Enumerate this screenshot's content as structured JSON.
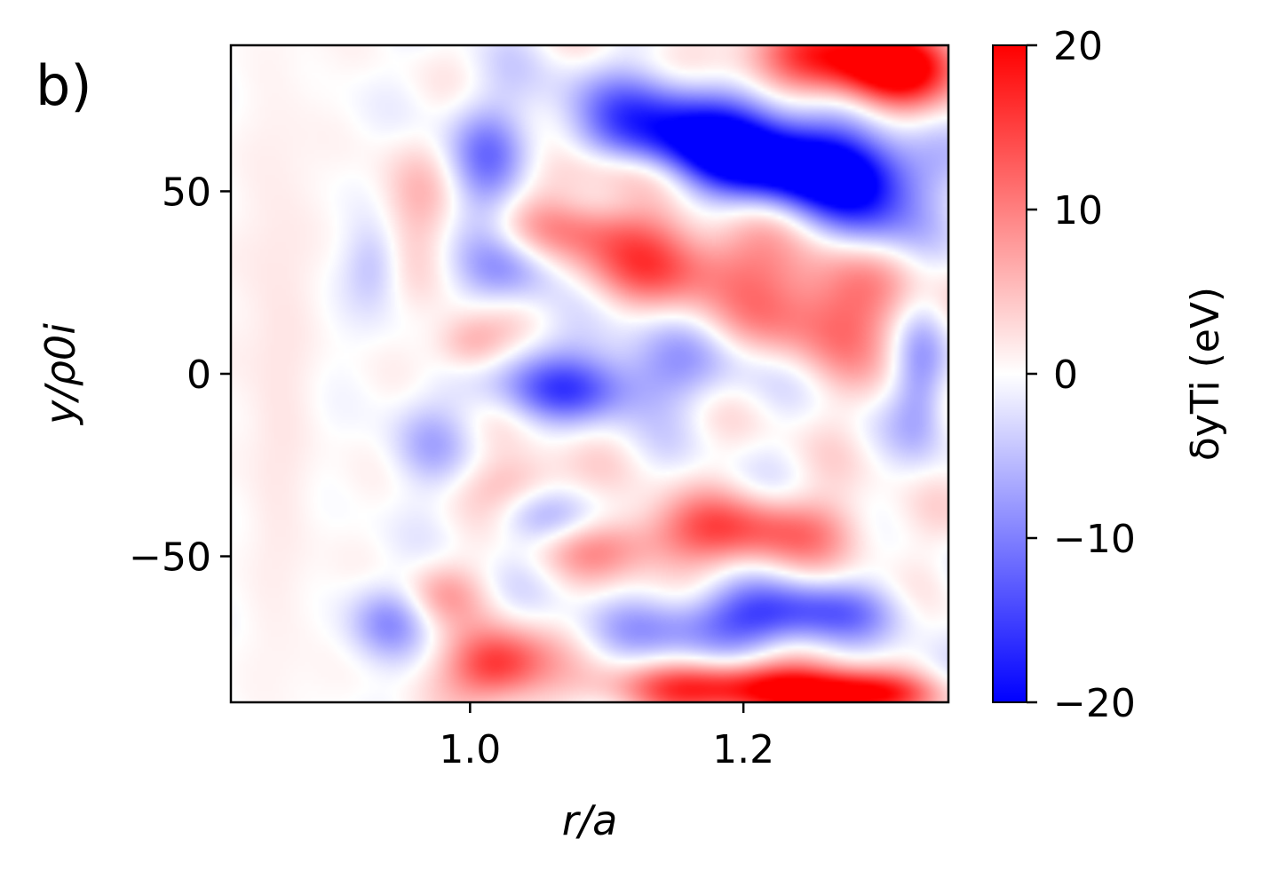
{
  "panel_label": "b)",
  "colors": {
    "cmap_low": "#0000ff",
    "cmap_mid": "#ffffff",
    "cmap_high": "#ff0000",
    "frame": "#000000"
  },
  "chart_data": {
    "type": "heatmap",
    "xlabel": "r/a",
    "ylabel": "y/ρ0i",
    "xlim": [
      0.825,
      1.35
    ],
    "ylim": [
      -90,
      90
    ],
    "xticks": [
      {
        "value": 1.0,
        "label": "1.0"
      },
      {
        "value": 1.2,
        "label": "1.2"
      }
    ],
    "yticks": [
      {
        "value": 50,
        "label": "50"
      },
      {
        "value": 0,
        "label": "0"
      },
      {
        "value": -50,
        "label": "−50"
      }
    ],
    "colorbar": {
      "label": "δyTi (eV)",
      "vmin": -20,
      "vmax": 20,
      "ticks": [
        {
          "value": 20,
          "label": "20"
        },
        {
          "value": 10,
          "label": "10"
        },
        {
          "value": 0,
          "label": "0"
        },
        {
          "value": -10,
          "label": "−10"
        },
        {
          "value": -20,
          "label": "−20"
        }
      ]
    },
    "features": [
      {
        "x": 1.19,
        "y": 62,
        "sx": 0.06,
        "sy": 8,
        "v": -20
      },
      {
        "x": 1.25,
        "y": 55,
        "sx": 0.05,
        "sy": 7,
        "v": -17
      },
      {
        "x": 1.29,
        "y": 45,
        "sx": 0.03,
        "sy": 10,
        "v": -14
      },
      {
        "x": 1.14,
        "y": 72,
        "sx": 0.05,
        "sy": 9,
        "v": -11
      },
      {
        "x": 1.27,
        "y": 86,
        "sx": 0.06,
        "sy": 7,
        "v": 17
      },
      {
        "x": 1.31,
        "y": 82,
        "sx": 0.03,
        "sy": 8,
        "v": 13
      },
      {
        "x": 1.26,
        "y": 18,
        "sx": 0.05,
        "sy": 14,
        "v": 13
      },
      {
        "x": 1.14,
        "y": 30,
        "sx": 0.05,
        "sy": 8,
        "v": 12
      },
      {
        "x": 1.09,
        "y": 40,
        "sx": 0.04,
        "sy": 6,
        "v": 8
      },
      {
        "x": 1.0,
        "y": 8,
        "sx": 0.02,
        "sy": 6,
        "v": 9
      },
      {
        "x": 0.96,
        "y": 45,
        "sx": 0.02,
        "sy": 12,
        "v": 5
      },
      {
        "x": 1.01,
        "y": 58,
        "sx": 0.02,
        "sy": 12,
        "v": -9
      },
      {
        "x": 1.03,
        "y": 28,
        "sx": 0.025,
        "sy": 7,
        "v": -8
      },
      {
        "x": 1.13,
        "y": 2,
        "sx": 0.08,
        "sy": 8,
        "v": -7
      },
      {
        "x": 1.07,
        "y": -5,
        "sx": 0.04,
        "sy": 6,
        "v": -9
      },
      {
        "x": 1.33,
        "y": 0,
        "sx": 0.015,
        "sy": 14,
        "v": -9
      },
      {
        "x": 1.2,
        "y": -43,
        "sx": 0.06,
        "sy": 7,
        "v": 13
      },
      {
        "x": 1.1,
        "y": -48,
        "sx": 0.04,
        "sy": 6,
        "v": 6
      },
      {
        "x": 1.24,
        "y": -65,
        "sx": 0.05,
        "sy": 6,
        "v": -12
      },
      {
        "x": 1.17,
        "y": -70,
        "sx": 0.05,
        "sy": 6,
        "v": -8
      },
      {
        "x": 1.2,
        "y": -86,
        "sx": 0.06,
        "sy": 5,
        "v": 20
      },
      {
        "x": 1.28,
        "y": -88,
        "sx": 0.04,
        "sy": 4,
        "v": 16
      },
      {
        "x": 1.02,
        "y": -80,
        "sx": 0.025,
        "sy": 7,
        "v": 18
      },
      {
        "x": 0.98,
        "y": -60,
        "sx": 0.02,
        "sy": 6,
        "v": 6
      },
      {
        "x": 0.94,
        "y": -68,
        "sx": 0.02,
        "sy": 7,
        "v": -8
      },
      {
        "x": 1.04,
        "y": -30,
        "sx": 0.025,
        "sy": 6,
        "v": 7
      },
      {
        "x": 1.06,
        "y": -40,
        "sx": 0.03,
        "sy": 6,
        "v": -7
      },
      {
        "x": 0.97,
        "y": -20,
        "sx": 0.02,
        "sy": 8,
        "v": -5
      },
      {
        "x": 0.93,
        "y": 30,
        "sx": 0.015,
        "sy": 8,
        "v": -5
      },
      {
        "x": 1.11,
        "y": 55,
        "sx": 0.04,
        "sy": 6,
        "v": 9
      },
      {
        "x": 0.86,
        "y": 0,
        "sx": 0.02,
        "sy": 60,
        "v": 2
      }
    ]
  }
}
